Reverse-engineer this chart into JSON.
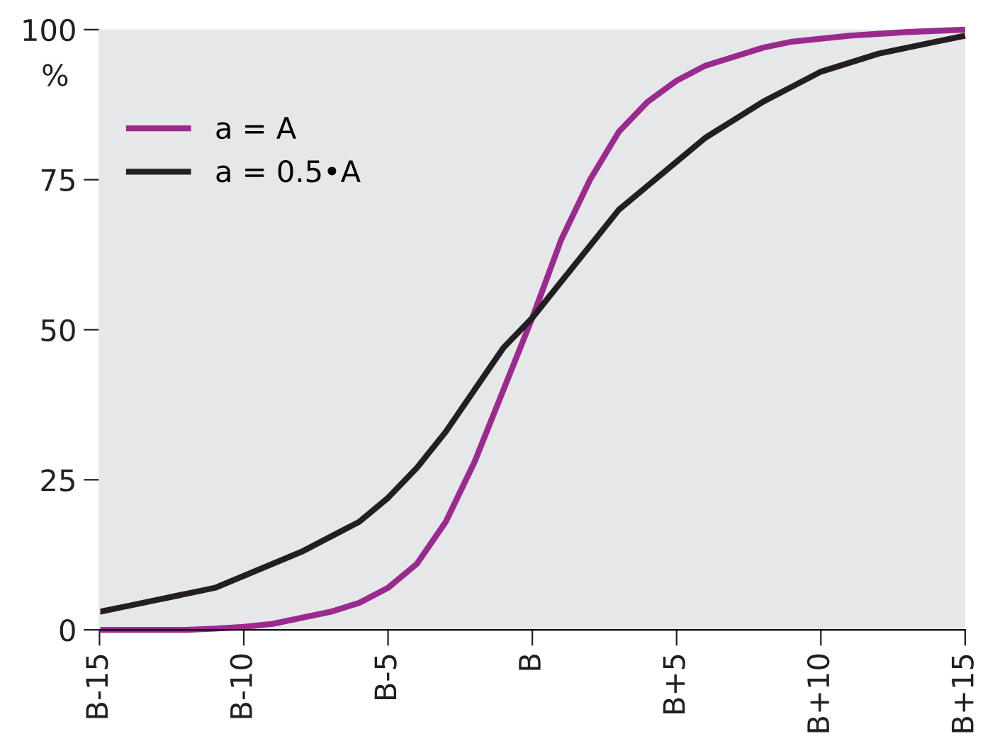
{
  "chart_data": {
    "type": "line",
    "ylabel": "%",
    "ylim": [
      0,
      100
    ],
    "categories": [
      "B-15",
      null,
      null,
      null,
      null,
      "B-10",
      null,
      null,
      null,
      null,
      "B-5",
      null,
      null,
      null,
      null,
      "B",
      null,
      null,
      null,
      null,
      "B+5",
      null,
      null,
      null,
      null,
      "B+10",
      null,
      null,
      null,
      null,
      "B+15"
    ],
    "yticks": [
      0,
      25,
      50,
      75,
      100
    ],
    "grid": false,
    "legend": "top left",
    "marker": "none",
    "line_style": "solid",
    "series": [
      {
        "name": "a = A",
        "color": "#9b2a8e",
        "values": [
          0,
          0,
          0,
          0,
          0.2,
          0.5,
          1,
          2,
          3,
          4.5,
          7,
          11,
          18,
          28,
          40,
          52,
          65,
          75,
          83,
          88,
          91.5,
          94,
          95.5,
          97,
          98,
          98.5,
          99,
          99.3,
          99.6,
          99.8,
          100
        ]
      },
      {
        "name": "a = 0.5•A",
        "color": "#231f20",
        "values": [
          3,
          4,
          5,
          6,
          7,
          9,
          11,
          13,
          15.5,
          18,
          22,
          27,
          33,
          40,
          47,
          52,
          58,
          64,
          70,
          74,
          78,
          82,
          85,
          88,
          90.5,
          93,
          94.5,
          96,
          97,
          98,
          99
        ]
      }
    ]
  }
}
